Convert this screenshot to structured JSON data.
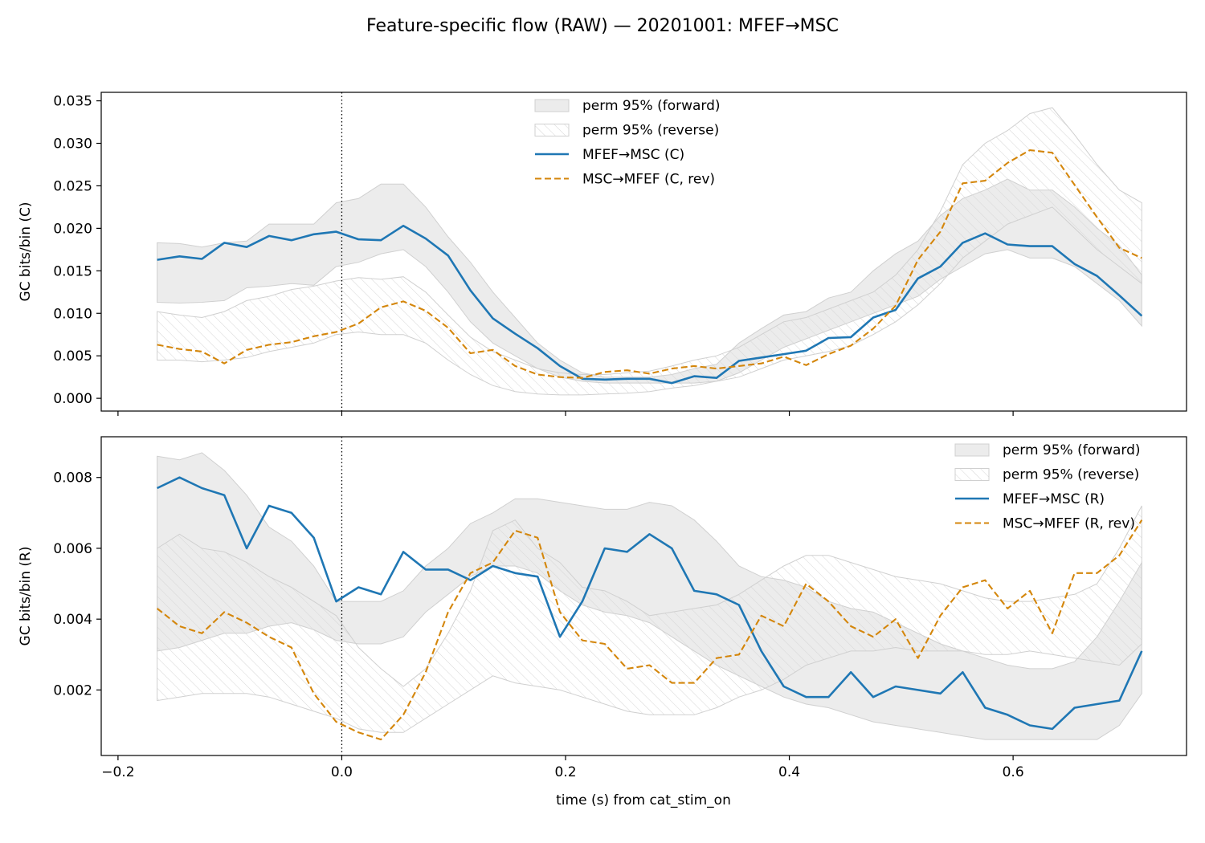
{
  "figure": {
    "title": "Feature-specific flow (RAW) — 20201001: MFEF→MSC",
    "xlabel": "time (s) from cat_stim_on"
  },
  "colors": {
    "forward_line": "#1f77b4",
    "reverse_line": "#d4860b",
    "band_fill": "#ececec",
    "band_edge": "#d0d0d0",
    "hatch": "#d6d6d6"
  },
  "chart_data": [
    {
      "type": "line",
      "ylabel": "GC bits/bin (C)",
      "xlim": [
        -0.215,
        0.755
      ],
      "ylim": [
        -0.0015,
        0.036
      ],
      "xticks": [
        -0.2,
        0.0,
        0.2,
        0.4,
        0.6
      ],
      "xtick_labels_visible": false,
      "yticks": [
        0.0,
        0.005,
        0.01,
        0.015,
        0.02,
        0.025,
        0.03,
        0.035
      ],
      "ytick_labels": [
        "0.000",
        "0.005",
        "0.010",
        "0.015",
        "0.020",
        "0.025",
        "0.030",
        "0.035"
      ],
      "vline_x": 0.0,
      "legend": {
        "position": "upper-center",
        "entries": [
          {
            "kind": "band",
            "label": "perm 95% (forward)"
          },
          {
            "kind": "hatch",
            "label": "perm 95% (reverse)"
          },
          {
            "kind": "solid",
            "label": "MFEF→MSC (C)"
          },
          {
            "kind": "dashed",
            "label": "MSC→MFEF (C, rev)"
          }
        ]
      },
      "x": [
        -0.165,
        -0.145,
        -0.125,
        -0.105,
        -0.085,
        -0.065,
        -0.045,
        -0.025,
        -0.005,
        0.015,
        0.035,
        0.055,
        0.075,
        0.095,
        0.115,
        0.135,
        0.155,
        0.175,
        0.195,
        0.215,
        0.235,
        0.255,
        0.275,
        0.295,
        0.315,
        0.335,
        0.355,
        0.375,
        0.395,
        0.415,
        0.435,
        0.455,
        0.475,
        0.495,
        0.515,
        0.535,
        0.555,
        0.575,
        0.595,
        0.615,
        0.635,
        0.655,
        0.675,
        0.695,
        0.715
      ],
      "bands": [
        {
          "name": "perm 95% (forward)",
          "style": "fill",
          "lower": [
            0.0113,
            0.0112,
            0.0113,
            0.0115,
            0.013,
            0.0132,
            0.0135,
            0.0133,
            0.0155,
            0.016,
            0.017,
            0.0175,
            0.0155,
            0.0125,
            0.009,
            0.0065,
            0.005,
            0.0035,
            0.0025,
            0.002,
            0.0018,
            0.0018,
            0.0018,
            0.0018,
            0.0018,
            0.002,
            0.003,
            0.0045,
            0.006,
            0.007,
            0.008,
            0.009,
            0.01,
            0.011,
            0.012,
            0.014,
            0.0155,
            0.017,
            0.0175,
            0.0165,
            0.0165,
            0.0155,
            0.0135,
            0.0115,
            0.0085
          ],
          "upper": [
            0.0183,
            0.0182,
            0.0178,
            0.0183,
            0.0185,
            0.0205,
            0.0205,
            0.0205,
            0.023,
            0.0235,
            0.0252,
            0.0252,
            0.0225,
            0.019,
            0.016,
            0.0125,
            0.0095,
            0.0065,
            0.0045,
            0.003,
            0.0025,
            0.0025,
            0.0025,
            0.0028,
            0.0035,
            0.004,
            0.0065,
            0.0082,
            0.0098,
            0.0102,
            0.0118,
            0.0125,
            0.015,
            0.017,
            0.0185,
            0.0215,
            0.0235,
            0.0245,
            0.0258,
            0.0245,
            0.0245,
            0.0225,
            0.02,
            0.018,
            0.0145
          ]
        },
        {
          "name": "perm 95% (reverse)",
          "style": "hatch",
          "lower": [
            0.0045,
            0.0045,
            0.0043,
            0.0045,
            0.0048,
            0.0055,
            0.006,
            0.0065,
            0.0075,
            0.0078,
            0.0075,
            0.0075,
            0.0065,
            0.0045,
            0.0028,
            0.0015,
            0.0008,
            0.0005,
            0.0004,
            0.0004,
            0.0005,
            0.0006,
            0.0008,
            0.0012,
            0.0015,
            0.002,
            0.0025,
            0.0035,
            0.0045,
            0.005,
            0.0055,
            0.0062,
            0.0075,
            0.009,
            0.011,
            0.0135,
            0.0165,
            0.0185,
            0.0205,
            0.0215,
            0.0225,
            0.02,
            0.0175,
            0.0155,
            0.0135
          ],
          "upper": [
            0.0102,
            0.0098,
            0.0095,
            0.0102,
            0.0115,
            0.012,
            0.0128,
            0.0132,
            0.0138,
            0.0142,
            0.014,
            0.0143,
            0.0125,
            0.0098,
            0.0072,
            0.0055,
            0.0045,
            0.0035,
            0.003,
            0.0028,
            0.0028,
            0.003,
            0.0032,
            0.0038,
            0.0045,
            0.005,
            0.006,
            0.0075,
            0.009,
            0.0095,
            0.0105,
            0.0115,
            0.0125,
            0.0145,
            0.0175,
            0.022,
            0.0275,
            0.03,
            0.0315,
            0.0335,
            0.0342,
            0.031,
            0.0275,
            0.0245,
            0.023
          ]
        }
      ],
      "series": [
        {
          "name": "MFEF→MSC (C)",
          "style": "solid",
          "values": [
            0.0163,
            0.0167,
            0.0164,
            0.0183,
            0.0178,
            0.0191,
            0.0186,
            0.0193,
            0.0196,
            0.0187,
            0.0186,
            0.0203,
            0.0188,
            0.0168,
            0.0127,
            0.0094,
            0.0076,
            0.0059,
            0.0038,
            0.0023,
            0.0022,
            0.0023,
            0.0023,
            0.0018,
            0.0026,
            0.0024,
            0.0044,
            0.0048,
            0.0052,
            0.0056,
            0.0071,
            0.0072,
            0.0095,
            0.0104,
            0.0141,
            0.0155,
            0.0183,
            0.0194,
            0.0181,
            0.0179,
            0.0179,
            0.0158,
            0.0144,
            0.0121,
            0.0097
          ]
        },
        {
          "name": "MSC→MFEF (C, rev)",
          "style": "dashed",
          "values": [
            0.0063,
            0.0058,
            0.0055,
            0.0041,
            0.0057,
            0.0063,
            0.0066,
            0.0073,
            0.0078,
            0.0088,
            0.0107,
            0.0114,
            0.0103,
            0.0083,
            0.0053,
            0.0057,
            0.0038,
            0.0028,
            0.0025,
            0.0024,
            0.0031,
            0.0033,
            0.0029,
            0.0035,
            0.0038,
            0.0035,
            0.0038,
            0.0041,
            0.0049,
            0.0039,
            0.0052,
            0.0062,
            0.0082,
            0.0109,
            0.0163,
            0.0196,
            0.0253,
            0.0256,
            0.0277,
            0.0292,
            0.0289,
            0.0251,
            0.0213,
            0.0177,
            0.0165
          ]
        }
      ]
    },
    {
      "type": "line",
      "ylabel": "GC bits/bin (R)",
      "xlim": [
        -0.215,
        0.755
      ],
      "ylim": [
        0.00015,
        0.00915
      ],
      "xticks": [
        -0.2,
        0.0,
        0.2,
        0.4,
        0.6
      ],
      "xtick_labels": [
        "−0.2",
        "0.0",
        "0.2",
        "0.4",
        "0.6"
      ],
      "yticks": [
        0.002,
        0.004,
        0.006,
        0.008
      ],
      "ytick_labels": [
        "0.002",
        "0.004",
        "0.006",
        "0.008"
      ],
      "vline_x": 0.0,
      "legend": {
        "position": "upper-right",
        "entries": [
          {
            "kind": "band",
            "label": "perm 95% (forward)"
          },
          {
            "kind": "hatch",
            "label": "perm 95% (reverse)"
          },
          {
            "kind": "solid",
            "label": "MFEF→MSC (R)"
          },
          {
            "kind": "dashed",
            "label": "MSC→MFEF (R, rev)"
          }
        ]
      },
      "x": [
        -0.165,
        -0.145,
        -0.125,
        -0.105,
        -0.085,
        -0.065,
        -0.045,
        -0.025,
        -0.005,
        0.015,
        0.035,
        0.055,
        0.075,
        0.095,
        0.115,
        0.135,
        0.155,
        0.175,
        0.195,
        0.215,
        0.235,
        0.255,
        0.275,
        0.295,
        0.315,
        0.335,
        0.355,
        0.375,
        0.395,
        0.415,
        0.435,
        0.455,
        0.475,
        0.495,
        0.515,
        0.535,
        0.555,
        0.575,
        0.595,
        0.615,
        0.635,
        0.655,
        0.675,
        0.695,
        0.715
      ],
      "bands": [
        {
          "name": "perm 95% (forward)",
          "style": "fill",
          "lower": [
            0.0031,
            0.0032,
            0.0034,
            0.0036,
            0.0036,
            0.0038,
            0.0039,
            0.0037,
            0.0034,
            0.0033,
            0.0033,
            0.0035,
            0.0042,
            0.0047,
            0.0052,
            0.0055,
            0.0055,
            0.0053,
            0.0048,
            0.0044,
            0.0042,
            0.0041,
            0.0039,
            0.0035,
            0.0031,
            0.0027,
            0.0024,
            0.0021,
            0.0018,
            0.0016,
            0.0015,
            0.0013,
            0.0011,
            0.001,
            0.0009,
            0.0008,
            0.0007,
            0.0006,
            0.0006,
            0.0006,
            0.0006,
            0.0006,
            0.0006,
            0.001,
            0.0019
          ],
          "upper": [
            0.0086,
            0.0085,
            0.0087,
            0.0082,
            0.0075,
            0.0066,
            0.0062,
            0.0055,
            0.0045,
            0.0045,
            0.0045,
            0.0048,
            0.0055,
            0.006,
            0.0067,
            0.007,
            0.0074,
            0.0074,
            0.0073,
            0.0072,
            0.0071,
            0.0071,
            0.0073,
            0.0072,
            0.0068,
            0.0062,
            0.0055,
            0.0052,
            0.0051,
            0.0049,
            0.0045,
            0.0043,
            0.0042,
            0.0039,
            0.0036,
            0.0033,
            0.0031,
            0.0029,
            0.0027,
            0.0026,
            0.0026,
            0.0028,
            0.0035,
            0.0045,
            0.0056
          ]
        },
        {
          "name": "perm 95% (reverse)",
          "style": "hatch",
          "lower": [
            0.0017,
            0.0018,
            0.0019,
            0.0019,
            0.0019,
            0.0018,
            0.0016,
            0.0014,
            0.0012,
            0.0009,
            0.0008,
            0.0008,
            0.0012,
            0.0016,
            0.002,
            0.0024,
            0.0022,
            0.0021,
            0.002,
            0.0018,
            0.0016,
            0.0014,
            0.0013,
            0.0013,
            0.0013,
            0.0015,
            0.0018,
            0.002,
            0.0023,
            0.0027,
            0.0029,
            0.0031,
            0.0031,
            0.0032,
            0.0031,
            0.0031,
            0.0031,
            0.003,
            0.003,
            0.0031,
            0.003,
            0.0029,
            0.0028,
            0.0027,
            0.0033
          ],
          "upper": [
            0.006,
            0.0064,
            0.006,
            0.0059,
            0.0056,
            0.0052,
            0.0049,
            0.0045,
            0.0041,
            0.0032,
            0.0026,
            0.0021,
            0.0026,
            0.0036,
            0.0048,
            0.0065,
            0.0068,
            0.006,
            0.0056,
            0.0049,
            0.0048,
            0.0045,
            0.0041,
            0.0042,
            0.0043,
            0.0044,
            0.0047,
            0.0051,
            0.0055,
            0.0058,
            0.0058,
            0.0056,
            0.0054,
            0.0052,
            0.0051,
            0.005,
            0.0048,
            0.0046,
            0.0045,
            0.0045,
            0.0046,
            0.0047,
            0.005,
            0.006,
            0.0072
          ]
        }
      ],
      "series": [
        {
          "name": "MFEF→MSC (R)",
          "style": "solid",
          "values": [
            0.0077,
            0.008,
            0.0077,
            0.0075,
            0.006,
            0.0072,
            0.007,
            0.0063,
            0.0045,
            0.0049,
            0.0047,
            0.0059,
            0.0054,
            0.0054,
            0.0051,
            0.0055,
            0.0053,
            0.0052,
            0.0035,
            0.0045,
            0.006,
            0.0059,
            0.0064,
            0.006,
            0.0048,
            0.0047,
            0.0044,
            0.0031,
            0.0021,
            0.0018,
            0.0018,
            0.0025,
            0.0018,
            0.0021,
            0.002,
            0.0019,
            0.0025,
            0.0015,
            0.0013,
            0.001,
            0.0009,
            0.0015,
            0.0016,
            0.0017,
            0.0031
          ]
        },
        {
          "name": "MSC→MFEF (R, rev)",
          "style": "dashed",
          "values": [
            0.0043,
            0.0038,
            0.0036,
            0.0042,
            0.0039,
            0.0035,
            0.0032,
            0.0019,
            0.0011,
            0.0008,
            0.0006,
            0.0013,
            0.0025,
            0.0042,
            0.0053,
            0.0056,
            0.0065,
            0.0063,
            0.0042,
            0.0034,
            0.0033,
            0.0026,
            0.0027,
            0.0022,
            0.0022,
            0.0029,
            0.003,
            0.0041,
            0.0038,
            0.005,
            0.0045,
            0.0038,
            0.0035,
            0.004,
            0.0029,
            0.0041,
            0.0049,
            0.0051,
            0.0043,
            0.0048,
            0.0036,
            0.0053,
            0.0053,
            0.0058,
            0.0068
          ]
        }
      ]
    }
  ]
}
